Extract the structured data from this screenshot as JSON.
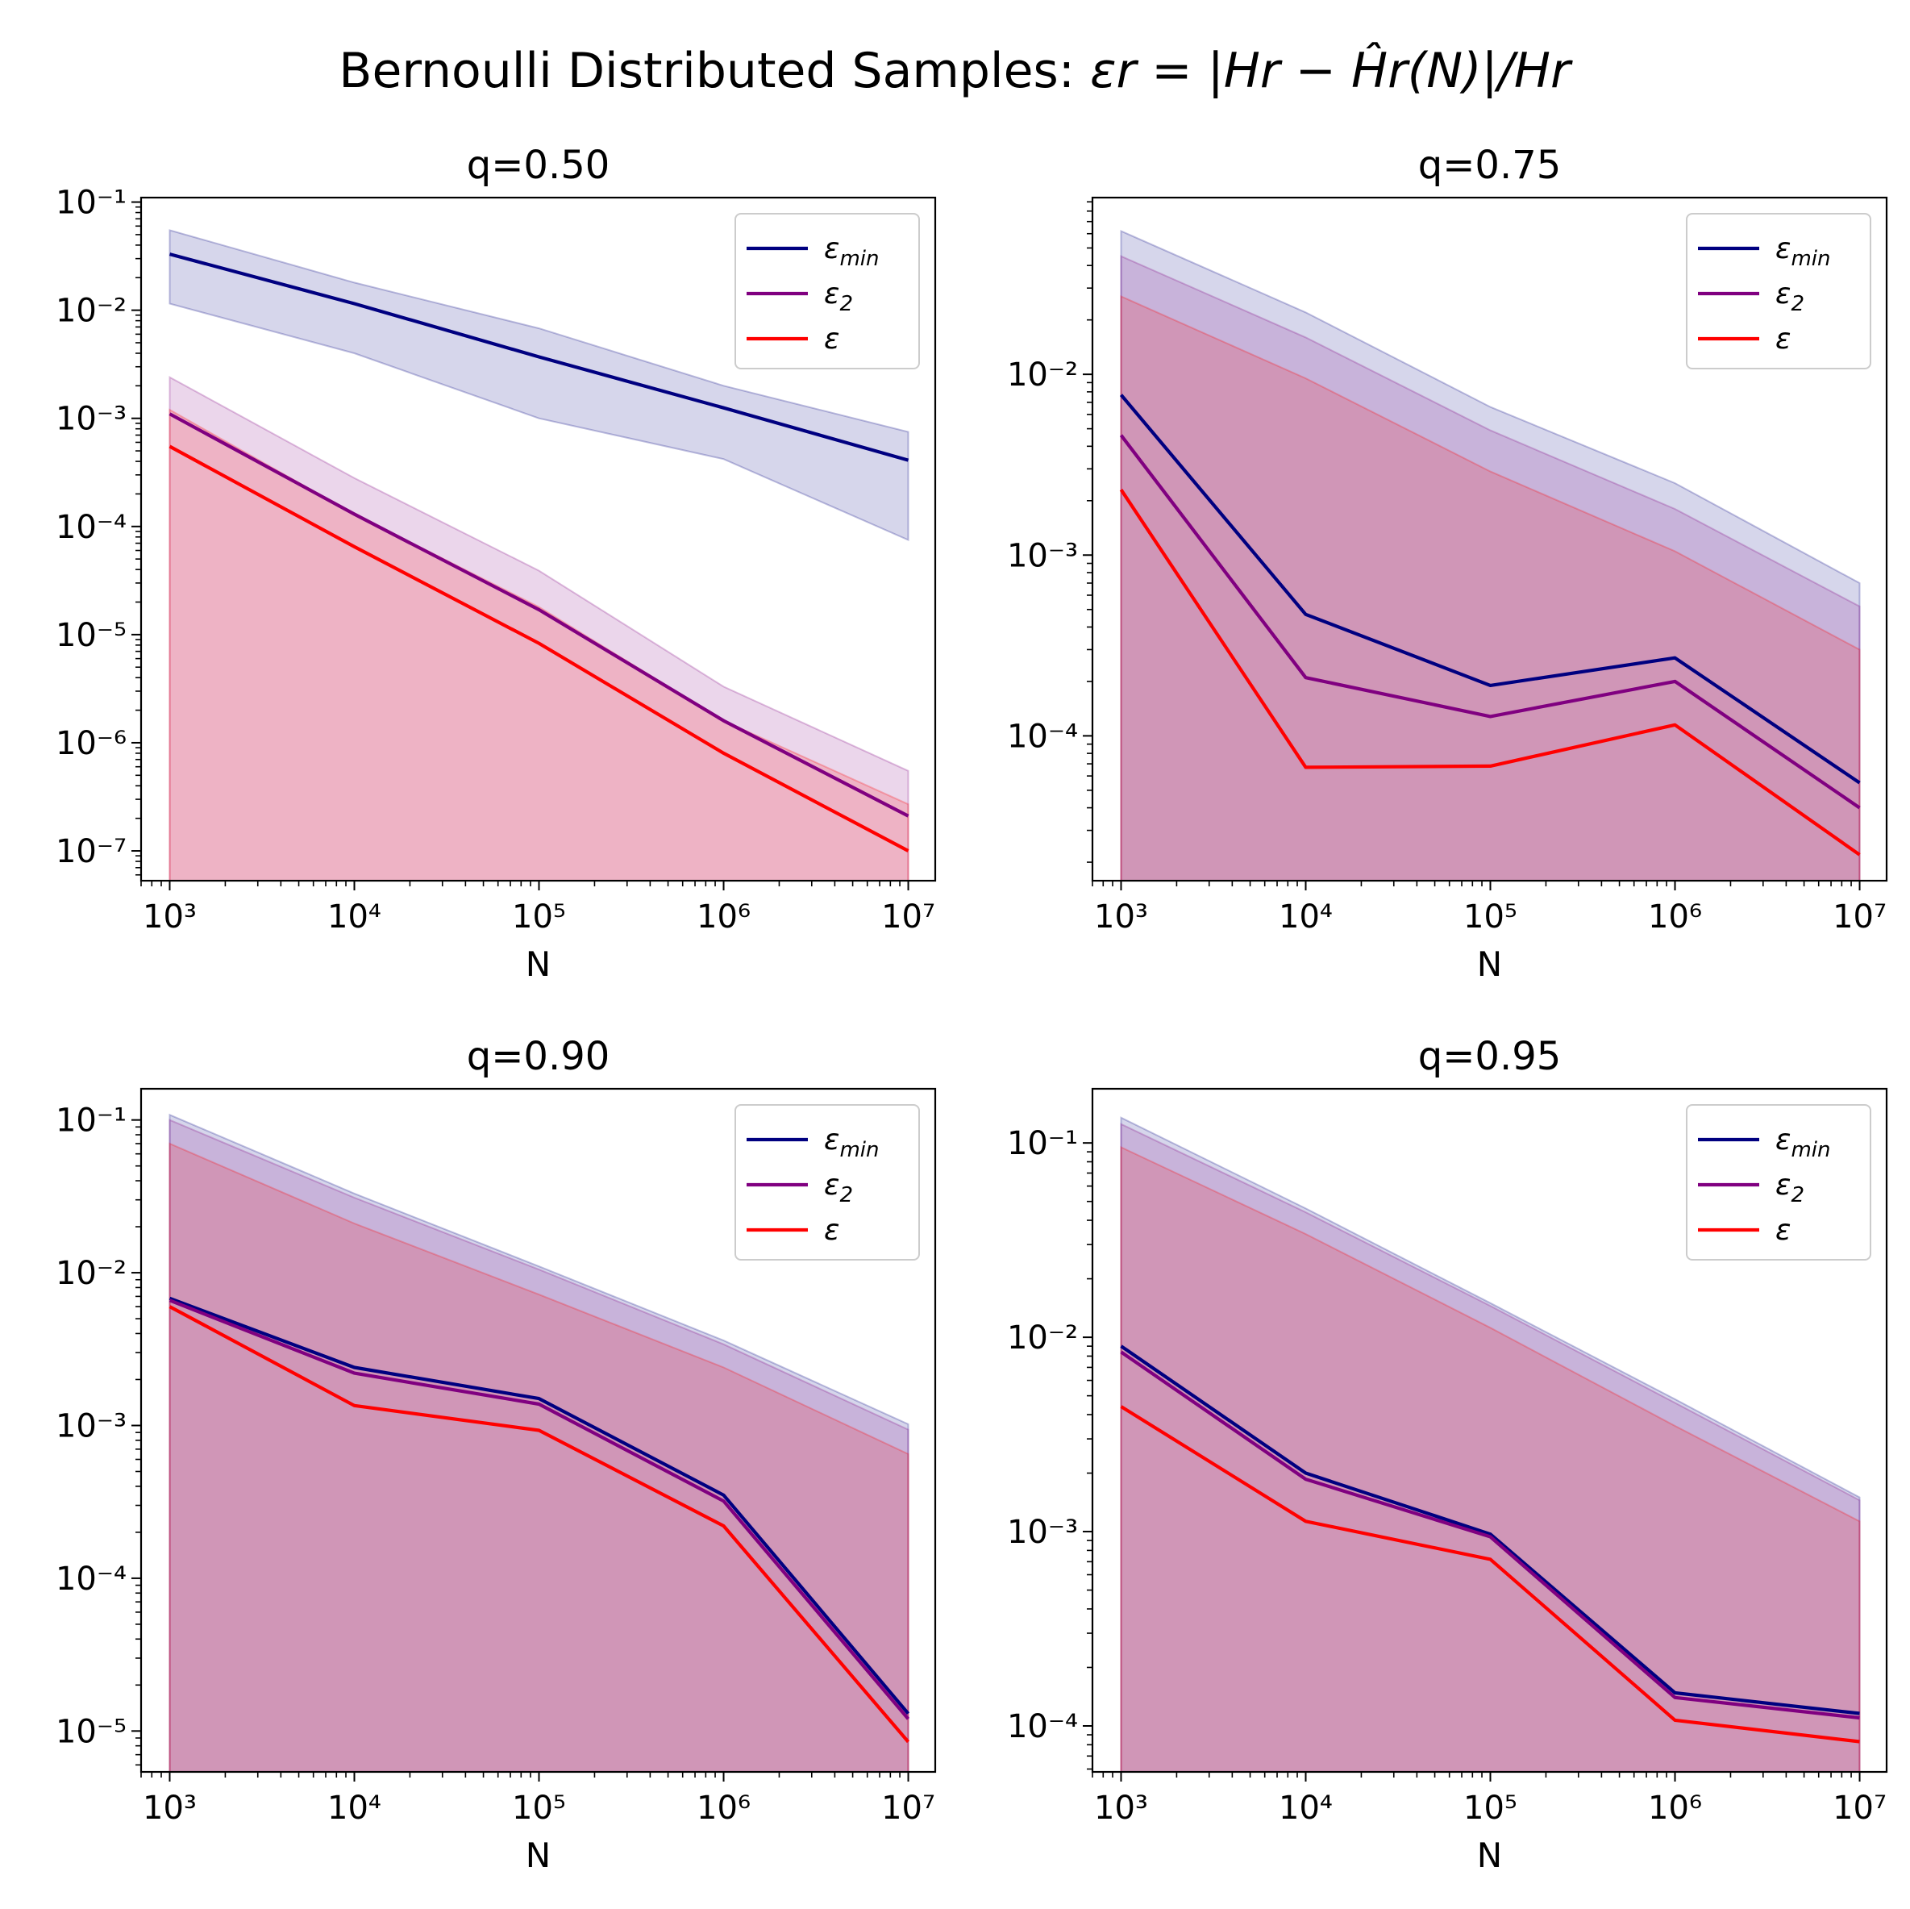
{
  "figure": {
    "title_prefix": "Bernoulli Distributed Samples: ",
    "title_math": "εr = |Hr − Ĥr(N)|/Hr"
  },
  "colors": {
    "eps_min": "#000080",
    "eps_2": "#800080",
    "eps": "#ff0000"
  },
  "legend": [
    "ε_min",
    "ε_2",
    "ε"
  ],
  "chart_data": [
    {
      "type": "line",
      "title": "q=0.50",
      "xlabel": "N",
      "ylabel": "",
      "xscale": "log",
      "yscale": "log",
      "x": [
        1000,
        10000,
        100000,
        1000000,
        10000000
      ],
      "xlim": [
        700,
        14000000
      ],
      "ylim": [
        5.3e-08,
        0.11
      ],
      "yticks": [
        1e-07,
        1e-06,
        1e-05,
        0.0001,
        0.001,
        0.01,
        0.1
      ],
      "legend_position": "upper right",
      "grid": false,
      "series": [
        {
          "name": "ε_min",
          "values": [
            0.033,
            0.0115,
            0.0037,
            0.00125,
            0.00041
          ],
          "band_upper": [
            0.055,
            0.018,
            0.0068,
            0.002,
            0.00075
          ],
          "band_lower": [
            0.0115,
            0.004,
            0.001,
            0.00042,
            7.5e-05
          ]
        },
        {
          "name": "ε_2",
          "values": [
            0.0011,
            0.00013,
            1.7e-05,
            1.6e-06,
            2.1e-07
          ],
          "band_upper": [
            0.0024,
            0.00028,
            3.9e-05,
            3.3e-06,
            5.5e-07
          ],
          "band_lower": [
            0,
            0,
            0,
            0,
            0
          ]
        },
        {
          "name": "ε",
          "values": [
            0.00055,
            6.5e-05,
            8.3e-06,
            8e-07,
            1e-07
          ],
          "band_upper": [
            0.0012,
            0.00013,
            1.8e-05,
            1.6e-06,
            2.7e-07
          ],
          "band_lower": [
            0,
            0,
            0,
            0,
            0
          ]
        }
      ]
    },
    {
      "type": "line",
      "title": "q=0.75",
      "xlabel": "N",
      "ylabel": "",
      "xscale": "log",
      "yscale": "log",
      "x": [
        1000,
        10000,
        100000,
        1000000,
        10000000
      ],
      "xlim": [
        700,
        14000000
      ],
      "ylim": [
        1.58e-05,
        0.095
      ],
      "yticks": [
        0.0001,
        0.001,
        0.01
      ],
      "legend_position": "upper right",
      "grid": false,
      "series": [
        {
          "name": "ε_min",
          "values": [
            0.0077,
            0.00047,
            0.00019,
            0.00027,
            5.5e-05
          ],
          "band_upper": [
            0.062,
            0.022,
            0.0066,
            0.0025,
            0.0007
          ],
          "band_lower": [
            0,
            0,
            0,
            0,
            0
          ]
        },
        {
          "name": "ε_2",
          "values": [
            0.0046,
            0.00021,
            0.000128,
            0.0002,
            4e-05
          ],
          "band_upper": [
            0.045,
            0.016,
            0.0049,
            0.0018,
            0.00052
          ],
          "band_lower": [
            0,
            0,
            0,
            0,
            0
          ]
        },
        {
          "name": "ε",
          "values": [
            0.0023,
            6.7e-05,
            6.8e-05,
            0.000115,
            2.2e-05
          ],
          "band_upper": [
            0.027,
            0.0095,
            0.0029,
            0.00105,
            0.0003
          ],
          "band_lower": [
            0,
            0,
            0,
            0,
            0
          ]
        }
      ]
    },
    {
      "type": "line",
      "title": "q=0.90",
      "xlabel": "N",
      "ylabel": "",
      "xscale": "log",
      "yscale": "log",
      "x": [
        1000,
        10000,
        100000,
        1000000,
        10000000
      ],
      "xlim": [
        700,
        14000000
      ],
      "ylim": [
        5.4e-06,
        0.16
      ],
      "yticks": [
        1e-05,
        0.0001,
        0.001,
        0.01,
        0.1
      ],
      "legend_position": "upper right",
      "grid": false,
      "series": [
        {
          "name": "ε_min",
          "values": [
            0.0068,
            0.0024,
            0.0015,
            0.00035,
            1.3e-05
          ],
          "band_upper": [
            0.108,
            0.033,
            0.011,
            0.0036,
            0.00102
          ],
          "band_lower": [
            0,
            0,
            0,
            0,
            0
          ]
        },
        {
          "name": "ε_2",
          "values": [
            0.0066,
            0.0022,
            0.00138,
            0.00032,
            1.2e-05
          ],
          "band_upper": [
            0.1,
            0.031,
            0.0105,
            0.0034,
            0.00094
          ],
          "band_lower": [
            0,
            0,
            0,
            0,
            0
          ]
        },
        {
          "name": "ε",
          "values": [
            0.006,
            0.00135,
            0.00093,
            0.00022,
            8.5e-06
          ],
          "band_upper": [
            0.07,
            0.021,
            0.0072,
            0.0024,
            0.00065
          ],
          "band_lower": [
            0,
            0,
            0,
            0,
            0
          ]
        }
      ]
    },
    {
      "type": "line",
      "title": "q=0.95",
      "xlabel": "N",
      "ylabel": "",
      "xscale": "log",
      "yscale": "log",
      "x": [
        1000,
        10000,
        100000,
        1000000,
        10000000
      ],
      "xlim": [
        700,
        14000000
      ],
      "ylim": [
        5.8e-05,
        0.19
      ],
      "yticks": [
        0.0001,
        0.001,
        0.01,
        0.1
      ],
      "legend_position": "upper right",
      "grid": false,
      "series": [
        {
          "name": "ε_min",
          "values": [
            0.009,
            0.002,
            0.00097,
            0.000148,
            0.000116
          ],
          "band_upper": [
            0.135,
            0.046,
            0.015,
            0.0048,
            0.0015
          ],
          "band_lower": [
            0,
            0,
            0,
            0,
            0
          ]
        },
        {
          "name": "ε_2",
          "values": [
            0.0084,
            0.00186,
            0.00094,
            0.00014,
            0.00011
          ],
          "band_upper": [
            0.125,
            0.044,
            0.0145,
            0.0046,
            0.00145
          ],
          "band_lower": [
            0,
            0,
            0,
            0,
            0
          ]
        },
        {
          "name": "ε",
          "values": [
            0.0044,
            0.00113,
            0.00072,
            0.000107,
            8.3e-05
          ],
          "band_upper": [
            0.095,
            0.034,
            0.0112,
            0.0035,
            0.00113
          ],
          "band_lower": [
            0,
            0,
            0,
            0,
            0
          ]
        }
      ]
    }
  ]
}
